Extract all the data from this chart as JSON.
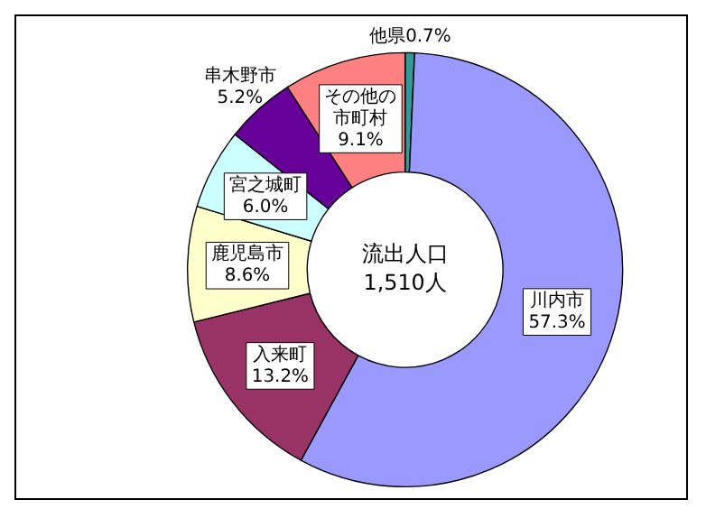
{
  "chart_data": {
    "type": "donut",
    "categories": [
      "他県",
      "川内市",
      "入来町",
      "鹿児島市",
      "宮之城町",
      "串木野市",
      "その他の市町村"
    ],
    "values": [
      0.7,
      57.3,
      13.2,
      8.6,
      6.0,
      5.2,
      9.1
    ],
    "colors": [
      "#339999",
      "#9999ff",
      "#993366",
      "#ffffcc",
      "#ccffff",
      "#660099",
      "#ff8080"
    ],
    "value_labels": [
      "0.7%",
      "57.3%",
      "13.2%",
      "8.6%",
      "6.0%",
      "5.2%",
      "9.1%"
    ],
    "annotations": [
      "流出人口",
      "1,510人"
    ],
    "legend": false
  }
}
